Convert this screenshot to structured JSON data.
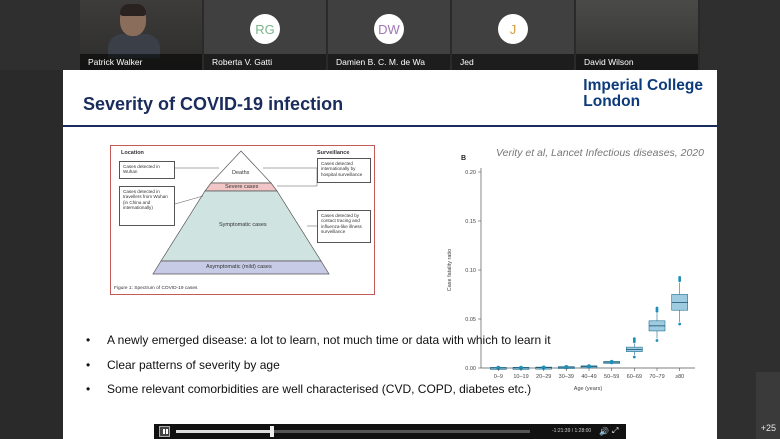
{
  "participants": [
    {
      "name": "Patrick Walker",
      "initials": "",
      "video": true
    },
    {
      "name": "Roberta V. Gatti",
      "initials": "RG",
      "color": "#7bb58a"
    },
    {
      "name": "Damien B. C. M. de Wa",
      "initials": "DW",
      "color": "#a377b3"
    },
    {
      "name": "Jed",
      "initials": "J",
      "color": "#d49a3a"
    },
    {
      "name": "David Wilson",
      "initials": "",
      "video": true
    }
  ],
  "overflow_count": "+25",
  "slide": {
    "title": "Severity of COVID-19 infection",
    "logo_line1": "Imperial College",
    "logo_line2": "London",
    "citation": "Verity et al, Lancet Infectious diseases, 2020",
    "bullets": [
      "A newly emerged disease: a lot to learn, not much time or data with which to learn it",
      "Clear patterns of severity by age",
      "Some relevant comorbidities are well characterised (CVD, COPD, diabetes etc.)"
    ]
  },
  "pyramid": {
    "location_header": "Location",
    "surveillance_header": "Surveillance",
    "tiers": [
      "Deaths",
      "Severe cases",
      "Symptomatic cases",
      "Asymptomatic (mild) cases"
    ],
    "left_boxes": [
      "Cases detected in Wuhan",
      "Cases detected in travellers from Wuhan (in China and internationally)"
    ],
    "right_boxes": [
      "Cases detected internationally by hospital surveillance",
      "Cases detected by contact tracing and influenza-like illness surveillance"
    ],
    "caption": "Figure 1: Spectrum of COVID-19 cases"
  },
  "chart_data": {
    "type": "box",
    "panel_label": "B",
    "xlabel": "Age (years)",
    "ylabel": "Case fatality ratio",
    "ylim": [
      0,
      0.2
    ],
    "yticks": [
      "0.00",
      "0.05",
      "0.10",
      "0.15",
      "0.20"
    ],
    "categories": [
      "0–9",
      "10–19",
      "20–29",
      "30–39",
      "40–49",
      "50–59",
      "60–69",
      "70–79",
      "≥80"
    ],
    "medians": [
      2e-05,
      7e-05,
      0.0003,
      0.0008,
      0.0016,
      0.006,
      0.019,
      0.043,
      0.067
    ],
    "box_color": "#9fcbe0",
    "point_color": "#1f8fb8"
  },
  "player": {
    "time": "-1:21:39  /  1:28:00",
    "progress": 0.27
  }
}
